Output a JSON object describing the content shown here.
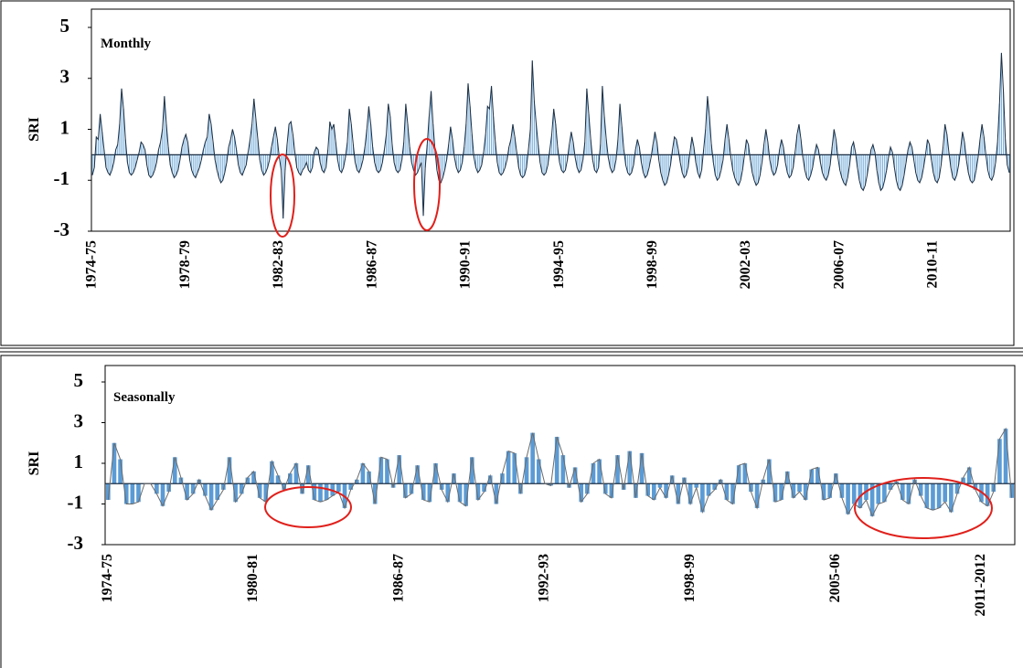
{
  "chart_data": [
    {
      "type": "bar",
      "title": "Monthly",
      "y_label": "SRI",
      "color": "#7fb2dc",
      "line_color": "#1c2f44",
      "ylim": [
        -3,
        5
      ],
      "yticks": [
        -3,
        -1,
        1,
        3,
        5
      ],
      "categories": [
        "1974-75",
        null,
        null,
        null,
        null,
        null,
        null,
        null,
        null,
        null,
        null,
        null,
        null,
        null,
        null,
        null,
        null,
        null,
        null,
        null,
        null,
        null,
        null,
        null,
        null,
        null,
        null,
        null,
        null,
        null,
        null,
        null,
        null,
        null,
        null,
        null,
        null,
        null,
        null,
        null,
        null,
        null,
        null,
        null,
        null,
        null,
        null,
        null,
        "1978-79",
        null,
        null,
        null,
        null,
        null,
        null,
        null,
        null,
        null,
        null,
        null,
        null,
        null,
        null,
        null,
        null,
        null,
        null,
        null,
        null,
        null,
        null,
        null,
        null,
        null,
        null,
        null,
        null,
        null,
        null,
        null,
        null,
        null,
        null,
        null,
        null,
        null,
        null,
        null,
        null,
        null,
        null,
        null,
        null,
        null,
        null,
        null,
        "1982-83",
        null,
        null,
        null,
        null,
        null,
        null,
        null,
        null,
        null,
        null,
        null,
        null,
        null,
        null,
        null,
        null,
        null,
        null,
        null,
        null,
        null,
        null,
        null,
        null,
        null,
        null,
        null,
        null,
        null,
        null,
        null,
        null,
        null,
        null,
        null,
        null,
        null,
        null,
        null,
        null,
        null,
        null,
        null,
        null,
        null,
        null,
        null,
        "1986-87",
        null,
        null,
        null,
        null,
        null,
        null,
        null,
        null,
        null,
        null,
        null,
        null,
        null,
        null,
        null,
        null,
        null,
        null,
        null,
        null,
        null,
        null,
        null,
        null,
        null,
        null,
        null,
        null,
        null,
        null,
        null,
        null,
        null,
        null,
        null,
        null,
        null,
        null,
        null,
        null,
        null,
        null,
        null,
        null,
        null,
        null,
        null,
        "1990-91",
        null,
        null,
        null,
        null,
        null,
        null,
        null,
        null,
        null,
        null,
        null,
        null,
        null,
        null,
        null,
        null,
        null,
        null,
        null,
        null,
        null,
        null,
        null,
        null,
        null,
        null,
        null,
        null,
        null,
        null,
        null,
        null,
        null,
        null,
        null,
        null,
        null,
        null,
        null,
        null,
        null,
        null,
        null,
        null,
        null,
        null,
        null,
        "1994-95",
        null,
        null,
        null,
        null,
        null,
        null,
        null,
        null,
        null,
        null,
        null,
        null,
        null,
        null,
        null,
        null,
        null,
        null,
        null,
        null,
        null,
        null,
        null,
        null,
        null,
        null,
        null,
        null,
        null,
        null,
        null,
        null,
        null,
        null,
        null,
        null,
        null,
        null,
        null,
        null,
        null,
        null,
        null,
        null,
        null,
        null,
        null,
        "1998-99",
        null,
        null,
        null,
        null,
        null,
        null,
        null,
        null,
        null,
        null,
        null,
        null,
        null,
        null,
        null,
        null,
        null,
        null,
        null,
        null,
        null,
        null,
        null,
        null,
        null,
        null,
        null,
        null,
        null,
        null,
        null,
        null,
        null,
        null,
        null,
        null,
        null,
        null,
        null,
        null,
        null,
        null,
        null,
        null,
        null,
        null,
        null,
        "2002-03",
        null,
        null,
        null,
        null,
        null,
        null,
        null,
        null,
        null,
        null,
        null,
        null,
        null,
        null,
        null,
        null,
        null,
        null,
        null,
        null,
        null,
        null,
        null,
        null,
        null,
        null,
        null,
        null,
        null,
        null,
        null,
        null,
        null,
        null,
        null,
        null,
        null,
        null,
        null,
        null,
        null,
        null,
        null,
        null,
        null,
        null,
        null,
        "2006-07",
        null,
        null,
        null,
        null,
        null,
        null,
        null,
        null,
        null,
        null,
        null,
        null,
        null,
        null,
        null,
        null,
        null,
        null,
        null,
        null,
        null,
        null,
        null,
        null,
        null,
        null,
        null,
        null,
        null,
        null,
        null,
        null,
        null,
        null,
        null,
        null,
        null,
        null,
        null,
        null,
        null,
        null,
        null,
        null,
        null,
        null,
        null,
        "2010-11",
        null,
        null,
        null,
        null,
        null,
        null,
        null,
        null,
        null,
        null,
        null,
        null,
        null,
        null,
        null,
        null,
        null,
        null,
        null,
        null,
        null,
        null,
        null,
        null,
        null,
        null,
        null,
        null,
        null,
        null,
        null,
        null,
        null,
        null,
        null,
        null,
        null,
        null,
        null
      ],
      "values": [
        -0.8,
        -0.5,
        0.7,
        0.6,
        1.6,
        0.9,
        0.2,
        -0.5,
        -0.7,
        -0.8,
        -0.6,
        -0.3,
        0.2,
        0.4,
        1.2,
        2.6,
        1.8,
        0.6,
        -0.3,
        -0.7,
        -0.8,
        -0.7,
        -0.5,
        -0.2,
        0.1,
        0.5,
        0.4,
        0.2,
        -0.4,
        -0.8,
        -0.9,
        -0.8,
        -0.6,
        -0.3,
        0.2,
        0.5,
        1.0,
        2.3,
        1.2,
        0.3,
        -0.4,
        -0.7,
        -0.9,
        -0.8,
        -0.6,
        -0.2,
        0.3,
        0.6,
        0.8,
        0.5,
        -0.2,
        -0.6,
        -0.8,
        -0.9,
        -0.7,
        -0.5,
        -0.2,
        0.2,
        0.5,
        0.7,
        1.6,
        1.2,
        0.5,
        -0.2,
        -0.6,
        -0.9,
        -1.1,
        -1.0,
        -0.7,
        -0.3,
        0.3,
        0.6,
        1.0,
        0.7,
        0.2,
        -0.4,
        -0.7,
        -0.8,
        -0.6,
        -0.4,
        0.1,
        0.6,
        1.2,
        2.2,
        1.4,
        0.6,
        -0.2,
        -0.6,
        -0.8,
        -0.7,
        -0.5,
        -0.2,
        0.3,
        0.7,
        1.1,
        0.6,
        -0.1,
        -0.6,
        -2.5,
        -0.6,
        0.4,
        1.2,
        1.3,
        0.8,
        0.1,
        -0.5,
        -0.7,
        -0.8,
        -0.6,
        -0.5,
        -0.3,
        -0.6,
        -0.7,
        -0.5,
        0.1,
        0.3,
        0.2,
        -0.3,
        -0.6,
        -0.7,
        -0.5,
        0.2,
        1.3,
        1.0,
        1.2,
        0.5,
        -0.2,
        -0.6,
        -0.7,
        -0.5,
        -0.1,
        0.5,
        1.8,
        1.2,
        0.4,
        -0.3,
        -0.6,
        -0.7,
        -0.5,
        -0.2,
        0.3,
        1.0,
        1.9,
        1.2,
        0.3,
        -0.3,
        -0.6,
        -0.7,
        -0.6,
        -0.3,
        0.2,
        0.8,
        2.0,
        1.5,
        0.4,
        -0.3,
        -0.6,
        -0.7,
        -0.6,
        -0.2,
        0.5,
        2.0,
        1.2,
        0.3,
        -0.3,
        -0.6,
        -0.8,
        -0.7,
        -0.5,
        -0.3,
        -2.4,
        -0.5,
        0.4,
        1.5,
        2.5,
        1.2,
        0.2,
        -0.6,
        -1.0,
        -1.1,
        -0.9,
        -0.6,
        -0.2,
        0.4,
        1.1,
        0.6,
        -0.1,
        -0.5,
        -0.7,
        -0.6,
        -0.3,
        0.3,
        1.2,
        2.8,
        1.9,
        0.8,
        -0.1,
        -0.5,
        -0.7,
        -0.6,
        -0.4,
        0.1,
        0.8,
        1.9,
        1.8,
        2.7,
        1.5,
        0.5,
        -0.3,
        -0.7,
        -0.8,
        -0.7,
        -0.5,
        -0.2,
        0.3,
        0.6,
        1.2,
        0.7,
        0.1,
        -0.5,
        -0.8,
        -0.9,
        -0.8,
        -0.5,
        0.2,
        1.0,
        3.7,
        2.1,
        1.2,
        0.4,
        -0.3,
        -0.7,
        -0.8,
        -0.7,
        -0.4,
        0.2,
        0.8,
        1.8,
        1.2,
        0.3,
        -0.3,
        -0.6,
        -0.7,
        -0.6,
        -0.2,
        0.4,
        0.9,
        0.5,
        -0.1,
        -0.5,
        -0.7,
        -0.6,
        -0.2,
        0.5,
        2.6,
        1.6,
        0.6,
        -0.2,
        -0.6,
        -0.7,
        -0.5,
        0.4,
        2.7,
        1.5,
        0.6,
        -0.1,
        -0.5,
        -0.7,
        -0.6,
        -0.2,
        0.6,
        2.0,
        1.1,
        0.2,
        -0.4,
        -0.7,
        -0.8,
        -0.7,
        -0.4,
        0.2,
        0.6,
        0.3,
        -0.3,
        -0.7,
        -0.9,
        -0.8,
        -0.5,
        -0.1,
        0.4,
        0.9,
        0.5,
        -0.2,
        -0.7,
        -1.0,
        -1.2,
        -1.1,
        -0.8,
        -0.4,
        0.2,
        0.7,
        0.6,
        0.2,
        -0.3,
        -0.7,
        -0.9,
        -0.8,
        -0.5,
        0.1,
        0.7,
        0.3,
        -0.3,
        -0.7,
        -0.9,
        -0.6,
        0.2,
        1.0,
        2.3,
        1.5,
        0.4,
        -0.3,
        -0.8,
        -1.0,
        -0.9,
        -0.6,
        -0.2,
        0.6,
        1.2,
        0.6,
        -0.1,
        -0.6,
        -0.9,
        -1.1,
        -1.2,
        -1.0,
        -0.6,
        0.0,
        0.6,
        0.4,
        -0.2,
        -0.7,
        -1.0,
        -1.2,
        -1.1,
        -0.8,
        -0.3,
        0.4,
        1.0,
        0.5,
        -0.2,
        -0.6,
        -0.8,
        -0.7,
        -0.4,
        0.2,
        0.6,
        0.3,
        -0.3,
        -0.7,
        -0.9,
        -0.8,
        -0.5,
        0.1,
        0.8,
        1.2,
        0.6,
        -0.1,
        -0.6,
        -0.9,
        -1.0,
        -0.8,
        -0.5,
        0.0,
        0.4,
        0.2,
        -0.3,
        -0.7,
        -0.9,
        -1.0,
        -0.8,
        -0.4,
        0.3,
        1.0,
        0.6,
        -0.1,
        -0.6,
        -0.9,
        -1.1,
        -1.2,
        -0.9,
        -0.4,
        0.3,
        0.5,
        0.1,
        -0.5,
        -1.0,
        -1.3,
        -1.4,
        -1.2,
        -0.8,
        -0.3,
        0.2,
        0.4,
        0.1,
        -0.6,
        -1.1,
        -1.4,
        -1.3,
        -1.0,
        -0.6,
        -0.1,
        0.3,
        0.1,
        -0.5,
        -1.0,
        -1.3,
        -1.4,
        -1.2,
        -0.8,
        -0.3,
        0.2,
        0.5,
        0.3,
        -0.2,
        -0.7,
        -1.0,
        -1.1,
        -0.9,
        -0.5,
        0.0,
        0.6,
        0.4,
        -0.2,
        -0.7,
        -1.0,
        -1.1,
        -0.9,
        -0.4,
        0.3,
        1.2,
        0.8,
        0.1,
        -0.5,
        -0.9,
        -1.0,
        -0.8,
        -0.4,
        0.2,
        0.9,
        0.5,
        -0.2,
        -0.7,
        -1.0,
        -1.1,
        -1.0,
        -0.6,
        -0.1,
        0.6,
        1.2,
        0.7,
        0.0,
        -0.6,
        -0.9,
        -1.0,
        -0.8,
        -0.3,
        0.5,
        2.0,
        4.0,
        2.5,
        0.6,
        -0.4,
        -0.7
      ]
    },
    {
      "type": "bar",
      "title": "Seasonally",
      "y_label": "SRI",
      "color": "#5b9bd5",
      "line_color": "#6b6b6b",
      "ylim": [
        -3,
        5
      ],
      "yticks": [
        -3,
        -1,
        1,
        3,
        5
      ],
      "categories": [
        "1974-75",
        null,
        null,
        null,
        null,
        null,
        null,
        null,
        null,
        null,
        null,
        null,
        null,
        null,
        null,
        null,
        null,
        null,
        null,
        null,
        null,
        null,
        null,
        null,
        "1980-81",
        null,
        null,
        null,
        null,
        null,
        null,
        null,
        null,
        null,
        null,
        null,
        null,
        null,
        null,
        null,
        null,
        null,
        null,
        null,
        null,
        null,
        null,
        null,
        "1986-87",
        null,
        null,
        null,
        null,
        null,
        null,
        null,
        null,
        null,
        null,
        null,
        null,
        null,
        null,
        null,
        null,
        null,
        null,
        null,
        null,
        null,
        null,
        null,
        "1992-93",
        null,
        null,
        null,
        null,
        null,
        null,
        null,
        null,
        null,
        null,
        null,
        null,
        null,
        null,
        null,
        null,
        null,
        null,
        null,
        null,
        null,
        null,
        null,
        "1998-99",
        null,
        null,
        null,
        null,
        null,
        null,
        null,
        null,
        null,
        null,
        null,
        null,
        null,
        null,
        null,
        null,
        null,
        null,
        null,
        null,
        null,
        null,
        null,
        "2005-06",
        null,
        null,
        null,
        null,
        null,
        null,
        null,
        null,
        null,
        null,
        null,
        null,
        null,
        null,
        null,
        null,
        null,
        null,
        null,
        null,
        null,
        null,
        null,
        "2011-2012",
        null,
        null,
        null,
        null,
        null
      ],
      "values": [
        -0.8,
        2.0,
        1.2,
        -1.0,
        -1.0,
        -0.9,
        0.0,
        0.0,
        -0.5,
        -1.1,
        -0.4,
        1.3,
        0.3,
        -0.8,
        -0.5,
        0.2,
        -0.6,
        -1.3,
        -0.8,
        -0.3,
        1.3,
        -0.9,
        -0.5,
        0.3,
        0.6,
        -0.7,
        -0.9,
        1.1,
        0.4,
        -0.3,
        0.5,
        1.0,
        -0.5,
        0.9,
        -0.8,
        -0.9,
        -0.8,
        -0.6,
        -0.4,
        -1.2,
        -0.3,
        0.2,
        1.0,
        0.6,
        -1.0,
        1.3,
        1.2,
        -0.2,
        1.4,
        -0.7,
        -0.5,
        0.9,
        -0.8,
        -0.9,
        1.0,
        -0.3,
        -0.9,
        0.5,
        -0.9,
        -1.1,
        1.3,
        -0.8,
        -0.4,
        0.4,
        -1.0,
        0.5,
        1.6,
        1.5,
        -0.5,
        1.3,
        2.5,
        1.2,
        0.0,
        -0.1,
        2.3,
        1.4,
        -0.2,
        0.8,
        -0.9,
        -0.5,
        1.0,
        1.2,
        -0.5,
        -0.7,
        1.4,
        -0.3,
        1.6,
        -0.7,
        1.5,
        -0.6,
        -0.8,
        -0.2,
        -0.7,
        0.4,
        -1.0,
        0.3,
        -1.0,
        -0.2,
        -1.4,
        -0.6,
        -0.3,
        0.2,
        -0.8,
        -1.0,
        0.9,
        1.0,
        -0.4,
        -1.2,
        0.2,
        1.2,
        -0.9,
        -0.8,
        0.6,
        -0.7,
        -0.4,
        -0.8,
        0.7,
        0.8,
        -0.8,
        -0.7,
        0.5,
        -0.7,
        -1.5,
        -1.0,
        -1.2,
        -0.8,
        -1.6,
        -1.0,
        -0.9,
        -0.3,
        0.1,
        -0.8,
        -1.0,
        0.2,
        -0.6,
        -1.2,
        -1.3,
        -1.2,
        -0.9,
        -1.4,
        -0.5,
        0.3,
        0.8,
        -0.3,
        -0.9,
        -1.1,
        -0.4,
        2.2,
        2.7,
        -0.7
      ]
    }
  ]
}
